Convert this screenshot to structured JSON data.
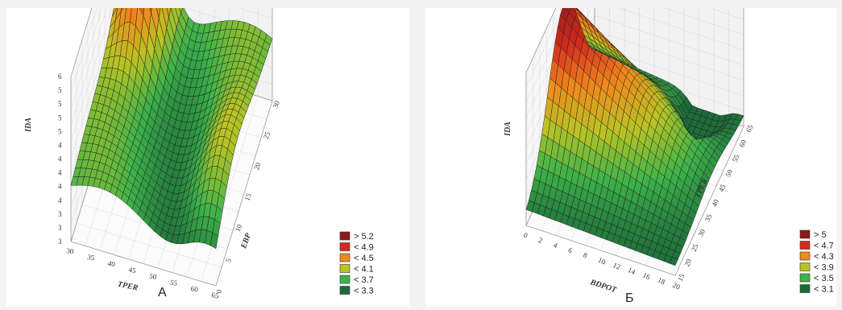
{
  "chart_data": [
    {
      "type": "surface3d",
      "caption": "А",
      "xlabel": "TPER",
      "ylabel": "EBP",
      "zlabel": "IDA",
      "xticks": [
        "30",
        "35",
        "40",
        "45",
        "50",
        "55",
        "60",
        "65"
      ],
      "yticks": [
        "0",
        "5",
        "10",
        "15",
        "20",
        "25",
        "30"
      ],
      "zticks": [
        "3",
        "3",
        "3",
        "4",
        "4",
        "4",
        "4",
        "4",
        "5",
        "5",
        "5",
        "5",
        "6"
      ],
      "legend": [
        {
          "label": "> 5.2",
          "color": "#8c1a1a"
        },
        {
          "label": "< 4.9",
          "color": "#d42a1e"
        },
        {
          "label": "< 4.5",
          "color": "#f08a1c"
        },
        {
          "label": "< 4.1",
          "color": "#b9c424"
        },
        {
          "label": "< 3.7",
          "color": "#3db34a"
        },
        {
          "label": "< 3.3",
          "color": "#1d6b3a"
        }
      ]
    },
    {
      "type": "surface3d",
      "caption": "Б",
      "xlabel": "BDPOT",
      "ylabel": "TPER",
      "zlabel": "IDA",
      "xticks": [
        "0",
        "2",
        "4",
        "6",
        "8",
        "10",
        "12",
        "14",
        "16",
        "18",
        "20"
      ],
      "yticks": [
        "15",
        "20",
        "25",
        "30",
        "35",
        "40",
        "45",
        "50",
        "55",
        "60",
        "65"
      ],
      "zticks": [],
      "legend": [
        {
          "label": "> 5",
          "color": "#8c1a1a"
        },
        {
          "label": "< 4.7",
          "color": "#d42a1e"
        },
        {
          "label": "< 4.3",
          "color": "#f08a1c"
        },
        {
          "label": "< 3.9",
          "color": "#b9c424"
        },
        {
          "label": "< 3.5",
          "color": "#3db34a"
        },
        {
          "label": "< 3.1",
          "color": "#1d6b3a"
        }
      ]
    }
  ]
}
